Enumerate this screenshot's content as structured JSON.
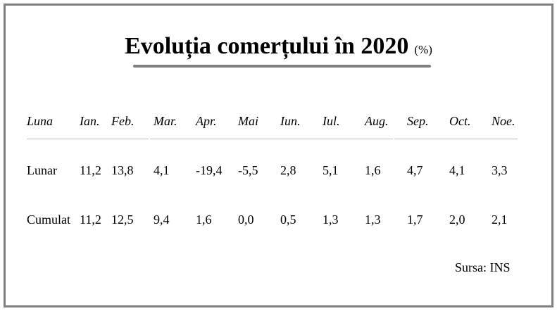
{
  "chart_data": {
    "type": "table",
    "title": "Evoluția comerțului în 2020",
    "unit": "(%)",
    "row_header_label": "Luna",
    "columns": [
      "Ian.",
      "Feb.",
      "Mar.",
      "Apr.",
      "Mai",
      "Iun.",
      "Iul.",
      "Aug.",
      "Sep.",
      "Oct.",
      "Noe."
    ],
    "rows": [
      {
        "name": "Lunar",
        "values": [
          "11,2",
          "13,8",
          "4,1",
          "-19,4",
          "-5,5",
          "2,8",
          "5,1",
          "1,6",
          "4,7",
          "4,1",
          "3,3"
        ]
      },
      {
        "name": "Cumulat",
        "values": [
          "11,2",
          "12,5",
          "9,4",
          "1,6",
          "0,0",
          "0,5",
          "1,3",
          "1,3",
          "1,7",
          "2,0",
          "2,1"
        ]
      }
    ],
    "source": "Sursa: INS"
  }
}
